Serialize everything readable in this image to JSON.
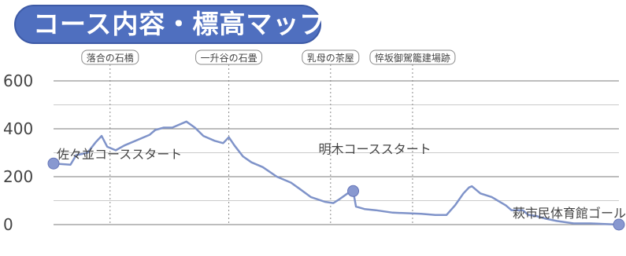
{
  "title": "コース内容・標高マップ",
  "colors": {
    "title_bg": "#4f6fbf",
    "line": "#7f93c9",
    "grid": "#8a8a8a",
    "point": "#8898d0",
    "landmark_border": "#8a8a8a",
    "text": "#444444"
  },
  "chart_data": {
    "type": "line",
    "title": "",
    "xlabel": "",
    "ylabel": "",
    "ylim": [
      0,
      600
    ],
    "yticks": [
      0,
      200,
      400,
      600
    ],
    "grid": "horizontal every 100 m; vertical dotted at landmarks",
    "legend": "none",
    "x_unit": "relative distance along course (0-100)",
    "series": [
      {
        "values_xy": [
          [
            0,
            255
          ],
          [
            3,
            250
          ],
          [
            4,
            290
          ],
          [
            6,
            300
          ],
          [
            7.5,
            345
          ],
          [
            8.5,
            370
          ],
          [
            9.5,
            325
          ],
          [
            11,
            310
          ],
          [
            12.5,
            330
          ],
          [
            17,
            375
          ],
          [
            18,
            395
          ],
          [
            19.5,
            405
          ],
          [
            21,
            405
          ],
          [
            23.5,
            430
          ],
          [
            25,
            405
          ],
          [
            26.5,
            370
          ],
          [
            28.5,
            350
          ],
          [
            30,
            340
          ],
          [
            31,
            365
          ],
          [
            32,
            330
          ],
          [
            33.5,
            285
          ],
          [
            35,
            260
          ],
          [
            37,
            240
          ],
          [
            39.5,
            200
          ],
          [
            42,
            175
          ],
          [
            43.5,
            150
          ],
          [
            45.5,
            115
          ],
          [
            48,
            95
          ],
          [
            49.5,
            90
          ],
          [
            50.5,
            105
          ],
          [
            52,
            130
          ],
          [
            53,
            140
          ],
          [
            53.5,
            75
          ],
          [
            55,
            65
          ],
          [
            57,
            60
          ],
          [
            60,
            50
          ],
          [
            65,
            45
          ],
          [
            67.5,
            40
          ],
          [
            69.5,
            40
          ],
          [
            71,
            80
          ],
          [
            72.5,
            130
          ],
          [
            73.5,
            155
          ],
          [
            74,
            160
          ],
          [
            75.5,
            130
          ],
          [
            77.5,
            115
          ],
          [
            80,
            80
          ],
          [
            81,
            60
          ],
          [
            83,
            60
          ],
          [
            84,
            40
          ],
          [
            85.5,
            35
          ],
          [
            87,
            25
          ],
          [
            89,
            15
          ],
          [
            92,
            5
          ],
          [
            95,
            5
          ],
          [
            100,
            0
          ]
        ]
      }
    ],
    "points": [
      {
        "label": "佐々並コーススタート",
        "x": 0,
        "y": 255
      },
      {
        "label": "明木コーススタート",
        "x": 53,
        "y": 140
      },
      {
        "label": "萩市民体育館ゴール",
        "x": 100,
        "y": 0
      }
    ],
    "landmarks": [
      {
        "label": "落合の石橋",
        "x": 10
      },
      {
        "label": "一升谷の石畳",
        "x": 31
      },
      {
        "label": "乳母の茶屋",
        "x": 49
      },
      {
        "label": "悴坂御駕籠建場跡",
        "x": 63.5
      }
    ]
  }
}
